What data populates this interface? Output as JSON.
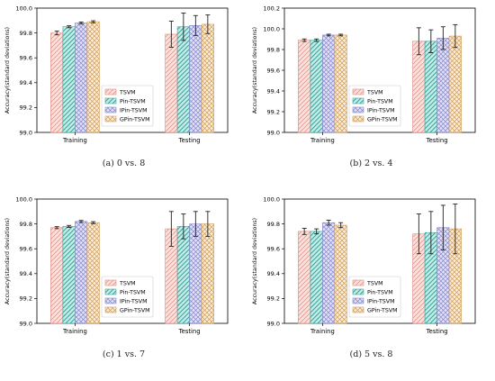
{
  "chart_data": [
    {
      "type": "bar",
      "caption": "(a) 0 vs. 8",
      "ylabel": "Accuracy(standard deviations)",
      "ylim": [
        99.0,
        100.0
      ],
      "yticks": [
        "99.0",
        "99.2",
        "99.4",
        "99.6",
        "99.8",
        "100.0"
      ],
      "categories": [
        "Training",
        "Testing"
      ],
      "legend_position": "lower-left-center",
      "series": [
        {
          "name": "TSVM",
          "values": [
            99.8,
            99.79
          ],
          "errors": [
            0.015,
            0.105
          ]
        },
        {
          "name": "Pin-TSVM",
          "values": [
            99.85,
            99.85
          ],
          "errors": [
            0.008,
            0.11
          ]
        },
        {
          "name": "IPin-TSVM",
          "values": [
            99.88,
            99.86
          ],
          "errors": [
            0.008,
            0.08
          ]
        },
        {
          "name": "GPin-TSVM",
          "values": [
            99.89,
            99.87
          ],
          "errors": [
            0.008,
            0.075
          ]
        }
      ]
    },
    {
      "type": "bar",
      "caption": "(b) 2 vs. 4",
      "ylabel": "Accuracy(standard deviations)",
      "ylim": [
        99.0,
        100.2
      ],
      "yticks": [
        "99.0",
        "99.2",
        "99.4",
        "99.6",
        "99.8",
        "100.0",
        "100.2"
      ],
      "categories": [
        "Training",
        "Testing"
      ],
      "legend_position": "lower-left-center",
      "series": [
        {
          "name": "TSVM",
          "values": [
            99.89,
            99.88
          ],
          "errors": [
            0.012,
            0.13
          ]
        },
        {
          "name": "Pin-TSVM",
          "values": [
            99.89,
            99.88
          ],
          "errors": [
            0.012,
            0.11
          ]
        },
        {
          "name": "IPin-TSVM",
          "values": [
            99.94,
            99.91
          ],
          "errors": [
            0.008,
            0.11
          ]
        },
        {
          "name": "GPin-TSVM",
          "values": [
            99.94,
            99.93
          ],
          "errors": [
            0.008,
            0.11
          ]
        }
      ]
    },
    {
      "type": "bar",
      "caption": "(c) 1 vs. 7",
      "ylabel": "Accuracy(standard deviations)",
      "ylim": [
        99.0,
        100.0
      ],
      "yticks": [
        "99.0",
        "99.2",
        "99.4",
        "99.6",
        "99.8",
        "100.0"
      ],
      "categories": [
        "Training",
        "Testing"
      ],
      "legend_position": "lower-left-center",
      "series": [
        {
          "name": "TSVM",
          "values": [
            99.77,
            99.76
          ],
          "errors": [
            0.008,
            0.14
          ]
        },
        {
          "name": "Pin-TSVM",
          "values": [
            99.78,
            99.78
          ],
          "errors": [
            0.008,
            0.1
          ]
        },
        {
          "name": "IPin-TSVM",
          "values": [
            99.82,
            99.8
          ],
          "errors": [
            0.008,
            0.1
          ]
        },
        {
          "name": "GPin-TSVM",
          "values": [
            99.81,
            99.8
          ],
          "errors": [
            0.008,
            0.1
          ]
        }
      ]
    },
    {
      "type": "bar",
      "caption": "(d) 5 vs. 8",
      "ylabel": "Accuracy(standard deviations)",
      "ylim": [
        99.0,
        100.0
      ],
      "yticks": [
        "99.0",
        "99.2",
        "99.4",
        "99.6",
        "99.8",
        "100.0"
      ],
      "categories": [
        "Training",
        "Testing"
      ],
      "legend_position": "lower-left-center",
      "series": [
        {
          "name": "TSVM",
          "values": [
            99.74,
            99.72
          ],
          "errors": [
            0.025,
            0.16
          ]
        },
        {
          "name": "Pin-TSVM",
          "values": [
            99.74,
            99.73
          ],
          "errors": [
            0.02,
            0.17
          ]
        },
        {
          "name": "IPin-TSVM",
          "values": [
            99.81,
            99.77
          ],
          "errors": [
            0.02,
            0.18
          ]
        },
        {
          "name": "GPin-TSVM",
          "values": [
            99.79,
            99.76
          ],
          "errors": [
            0.02,
            0.2
          ]
        }
      ]
    }
  ],
  "series_style": [
    {
      "fill": "#fbe0dc",
      "stroke": "#e0877c",
      "hatch": "diag"
    },
    {
      "fill": "#c5ece8",
      "stroke": "#3aa69b",
      "hatch": "diag2"
    },
    {
      "fill": "#e2e2f6",
      "stroke": "#8585cf",
      "hatch": "cross"
    },
    {
      "fill": "#fbedd7",
      "stroke": "#cf9a55",
      "hatch": "cross"
    }
  ]
}
